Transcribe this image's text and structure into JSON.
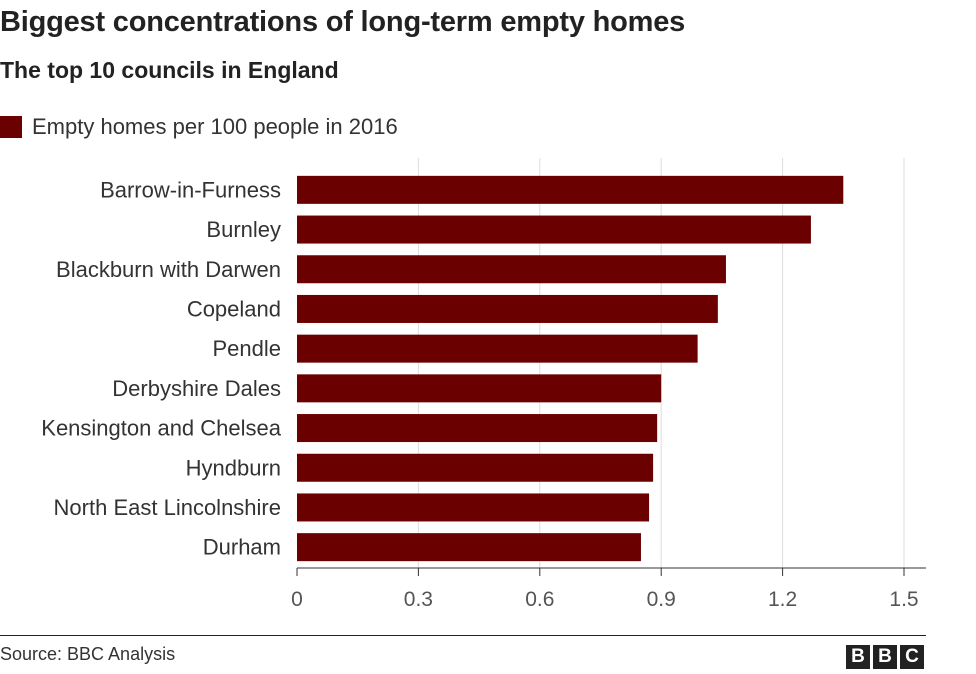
{
  "header": {
    "title": "Biggest concentrations of long-term empty homes",
    "subtitle": "The top 10 councils in England"
  },
  "footer": {
    "source": "Source: BBC Analysis",
    "logo_letters": [
      "B",
      "B",
      "C"
    ]
  },
  "colors": {
    "bar": "#6b0000",
    "grid": "#dddddd",
    "axis": "#333333",
    "text": "#333333"
  },
  "chart_data": {
    "type": "bar",
    "orientation": "horizontal",
    "title": "Biggest concentrations of long-term empty homes",
    "subtitle": "The top 10 councils in England",
    "categories": [
      "Barrow-in-Furness",
      "Burnley",
      "Blackburn with Darwen",
      "Copeland",
      "Pendle",
      "Derbyshire Dales",
      "Kensington and Chelsea",
      "Hyndburn",
      "North East Lincolnshire",
      "Durham"
    ],
    "series": [
      {
        "name": "Empty homes per 100 people in 2016",
        "values": [
          1.35,
          1.27,
          1.06,
          1.04,
          0.99,
          0.9,
          0.89,
          0.88,
          0.87,
          0.85
        ]
      }
    ],
    "xlim": [
      0,
      1.5
    ],
    "x_ticks": [
      0,
      0.3,
      0.6,
      0.9,
      1.2,
      1.5
    ],
    "x_tick_labels": [
      "0",
      "0.3",
      "0.6",
      "0.9",
      "1.2",
      "1.5"
    ],
    "grid": true,
    "legend_position": "top-left"
  }
}
